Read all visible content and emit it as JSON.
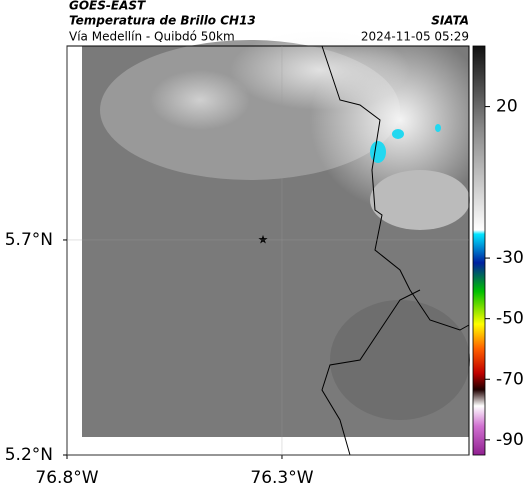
{
  "header": {
    "title": "GOES-EAST",
    "subtitle": "Temperatura de Brillo CH13",
    "location": "Vía Medellín - Quibdó 50km",
    "source": "SIATA",
    "datetime": "2024-11-05 05:29"
  },
  "map": {
    "xlim": [
      -76.8,
      -75.865
    ],
    "ylim": [
      5.2,
      6.151
    ],
    "xticks": [
      {
        "value": -76.8,
        "label": "76.8°W"
      },
      {
        "value": -76.3,
        "label": "76.3°W"
      }
    ],
    "yticks": [
      {
        "value": 5.7,
        "label": "5.7°N"
      },
      {
        "value": 5.2,
        "label": "5.2°N"
      }
    ]
  },
  "colorbar": {
    "lim": [
      -95,
      40
    ],
    "ticks": [
      20,
      -30,
      -50,
      -70,
      -90
    ]
  }
}
